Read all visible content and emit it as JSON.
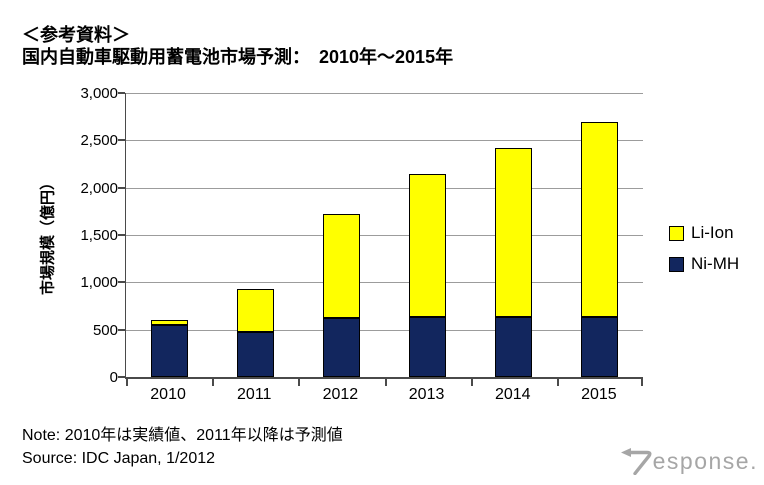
{
  "header": {
    "line1": "＜参考資料＞",
    "line2": "国内自動車駆動用蓄電池市場予測：　2010年～2015年"
  },
  "chart_data": {
    "type": "bar",
    "stacked": true,
    "title": "国内自動車駆動用蓄電池市場予測：2010年～2015年",
    "categories": [
      "2010",
      "2011",
      "2012",
      "2013",
      "2014",
      "2015"
    ],
    "series": [
      {
        "name": "Ni-MH",
        "color": "#12265e",
        "values": [
          550,
          480,
          625,
          630,
          630,
          630
        ]
      },
      {
        "name": "Li-Ion",
        "color": "#ffff00",
        "values": [
          55,
          445,
          1095,
          1515,
          1790,
          2060
        ]
      }
    ],
    "totals": [
      605,
      925,
      1720,
      2145,
      2420,
      2690
    ],
    "xlabel": "",
    "ylabel": "市場規模（億円）",
    "ylim": [
      0,
      3000
    ],
    "ytick_step": 500,
    "ytick_labels": [
      "0",
      "500",
      "1,000",
      "1,500",
      "2,000",
      "2,500",
      "3,000"
    ],
    "grid": true,
    "legend_position": "right",
    "legend": [
      {
        "label": "Li-Ion",
        "color": "#ffff00"
      },
      {
        "label": "Ni-MH",
        "color": "#12265e"
      }
    ]
  },
  "footer": {
    "note": "Note: 2010年は実績値、2011年以降は予測値",
    "source": "Source: IDC Japan, 1/2012"
  },
  "logo": {
    "text": "esponse.",
    "color": "#a6a6a6"
  }
}
